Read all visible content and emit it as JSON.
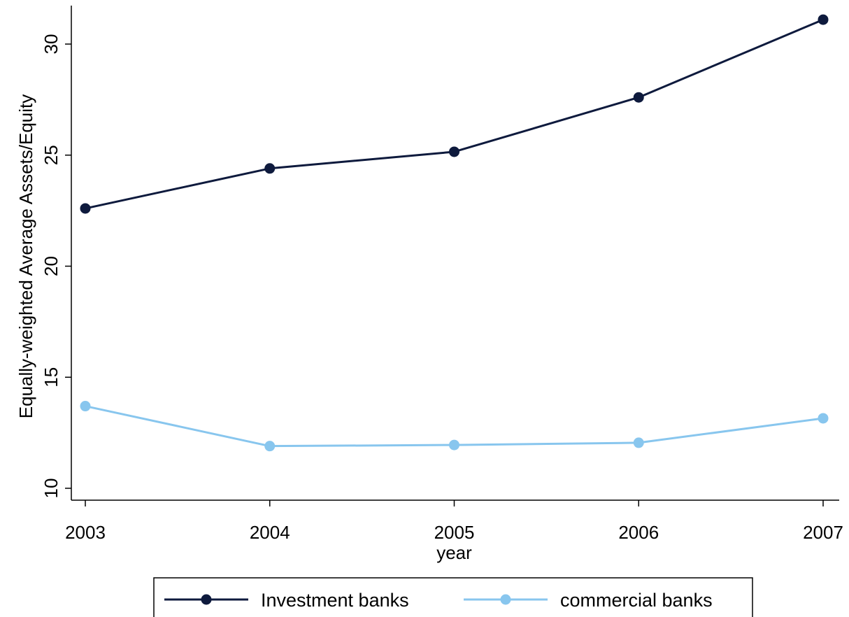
{
  "chart_data": {
    "type": "line",
    "title": "",
    "xlabel": "year",
    "ylabel": "Equally-weighted Average Assets/Equity",
    "x": [
      2003,
      2004,
      2005,
      2006,
      2007
    ],
    "xlim": [
      2003,
      2007
    ],
    "ylim": [
      10,
      31.8
    ],
    "yticks": [
      10,
      15,
      20,
      25,
      30
    ],
    "grid": false,
    "legend_position": "bottom",
    "series": [
      {
        "name": "Investment banks",
        "color": "#0e1a3d",
        "values": [
          22.6,
          24.4,
          25.15,
          27.6,
          31.1
        ]
      },
      {
        "name": "commercial banks",
        "color": "#88c6ee",
        "values": [
          13.7,
          11.9,
          11.95,
          12.05,
          13.15
        ]
      }
    ]
  }
}
